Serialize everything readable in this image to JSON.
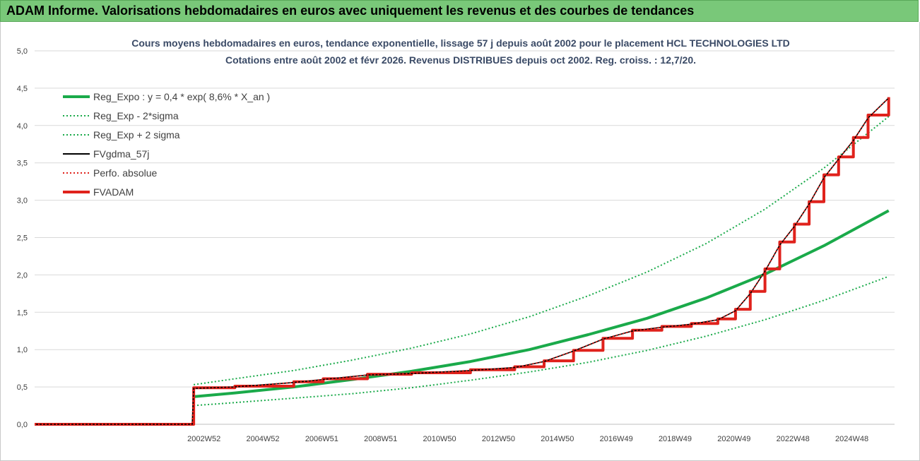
{
  "header": {
    "title": "ADAM Informe. Valorisations hebdomadaires en euros avec uniquement les revenus et des courbes de tendances"
  },
  "chart_data": {
    "type": "line",
    "title_line1": "Cours moyens hebdomadaires en euros, tendance exponentielle, lissage 57 j depuis août 2002 pour le placement HCL TECHNOLOGIES LTD",
    "title_line2": "Cotations entre août 2002 et févr 2026. Revenus DISTRIBUES depuis oct 2002. Reg. croiss. : 12,7/20.",
    "ylim": [
      0,
      5
    ],
    "yticks": [
      "0,0",
      "0,5",
      "1,0",
      "1,5",
      "2,0",
      "2,5",
      "3,0",
      "3,5",
      "4,0",
      "4,5",
      "5,0"
    ],
    "xlim": [
      1997.2,
      2026.4
    ],
    "xticks": [
      {
        "label": "2002W52",
        "x": 2002.95
      },
      {
        "label": "2004W52",
        "x": 2004.95
      },
      {
        "label": "2006W51",
        "x": 2006.95
      },
      {
        "label": "2008W51",
        "x": 2008.95
      },
      {
        "label": "2010W50",
        "x": 2010.95
      },
      {
        "label": "2012W50",
        "x": 2012.95
      },
      {
        "label": "2014W50",
        "x": 2014.95
      },
      {
        "label": "2016W49",
        "x": 2016.95
      },
      {
        "label": "2018W49",
        "x": 2018.95
      },
      {
        "label": "2020W49",
        "x": 2020.95
      },
      {
        "label": "2022W48",
        "x": 2022.95
      },
      {
        "label": "2024W48",
        "x": 2024.95
      }
    ],
    "grid": "horizontal",
    "legend_position": "top-left",
    "series": [
      {
        "name": "Reg_Expo : y = 0,4 * exp( 8,6% *  X_an )",
        "color": "#1aaa4a",
        "style": "solid-thick",
        "x": [
          2002.6,
          2004,
          2006,
          2008,
          2010,
          2012,
          2014,
          2016,
          2018,
          2020,
          2022,
          2024,
          2026.2
        ],
        "y": [
          0.37,
          0.42,
          0.5,
          0.6,
          0.71,
          0.84,
          1.0,
          1.2,
          1.42,
          1.69,
          2.01,
          2.39,
          2.86
        ]
      },
      {
        "name": "Reg_Exp - 2*sigma",
        "color": "#1aaa4a",
        "style": "dotted",
        "x": [
          2002.6,
          2004,
          2006,
          2008,
          2010,
          2012,
          2014,
          2016,
          2018,
          2020,
          2022,
          2024,
          2026.2
        ],
        "y": [
          0.25,
          0.29,
          0.35,
          0.41,
          0.49,
          0.59,
          0.7,
          0.83,
          0.99,
          1.18,
          1.4,
          1.66,
          1.98
        ]
      },
      {
        "name": "Reg_Exp + 2 sigma",
        "color": "#1aaa4a",
        "style": "dotted",
        "x": [
          2002.6,
          2004,
          2006,
          2008,
          2010,
          2012,
          2014,
          2016,
          2018,
          2020,
          2022,
          2024,
          2026.2
        ],
        "y": [
          0.53,
          0.61,
          0.72,
          0.86,
          1.02,
          1.21,
          1.44,
          1.72,
          2.04,
          2.42,
          2.88,
          3.43,
          4.12
        ]
      },
      {
        "name": "FVgdma_57j",
        "color": "#000000",
        "style": "solid",
        "x": [
          1997.2,
          2002.55,
          2002.6,
          2004,
          2006,
          2007,
          2008.5,
          2010,
          2012,
          2013.5,
          2014.5,
          2015.5,
          2016.5,
          2017.5,
          2018.5,
          2019.5,
          2020.4,
          2021,
          2021.5,
          2022,
          2022.5,
          2023,
          2023.5,
          2024,
          2024.5,
          2025,
          2025.5,
          2026.2
        ],
        "y": [
          0.0,
          0.0,
          0.48,
          0.5,
          0.56,
          0.6,
          0.66,
          0.68,
          0.72,
          0.76,
          0.84,
          0.98,
          1.14,
          1.25,
          1.3,
          1.34,
          1.4,
          1.52,
          1.75,
          2.05,
          2.4,
          2.65,
          2.95,
          3.3,
          3.55,
          3.8,
          4.1,
          4.37
        ]
      },
      {
        "name": "Perfo. absolue",
        "color": "#e0221c",
        "style": "dotted",
        "x": [
          1997.2,
          2002.55,
          2002.6,
          2004,
          2006,
          2007,
          2008.5,
          2010,
          2012,
          2013.5,
          2014.5,
          2015.5,
          2016.5,
          2017.5,
          2018.5,
          2019.5,
          2020.4,
          2021,
          2021.5,
          2022,
          2022.5,
          2023,
          2023.5,
          2024,
          2024.5,
          2025,
          2025.5,
          2026.2
        ],
        "y": [
          0.0,
          0.0,
          0.48,
          0.5,
          0.56,
          0.6,
          0.66,
          0.68,
          0.72,
          0.76,
          0.84,
          0.98,
          1.14,
          1.25,
          1.3,
          1.34,
          1.4,
          1.52,
          1.75,
          2.05,
          2.4,
          2.65,
          2.95,
          3.3,
          3.55,
          3.8,
          4.1,
          4.37
        ]
      },
      {
        "name": "FVADAM",
        "color": "#e0221c",
        "style": "solid-thick",
        "x": [
          1997.2,
          2002.55,
          2002.6,
          2004,
          2006,
          2007,
          2008.5,
          2010,
          2012,
          2013.5,
          2014.5,
          2015.5,
          2016.5,
          2017.5,
          2018.5,
          2019.5,
          2020.4,
          2021,
          2021.5,
          2022,
          2022.5,
          2023,
          2023.5,
          2024,
          2024.5,
          2025,
          2025.5,
          2026.2
        ],
        "y": [
          0.0,
          0.0,
          0.49,
          0.51,
          0.57,
          0.61,
          0.67,
          0.69,
          0.73,
          0.77,
          0.85,
          0.99,
          1.15,
          1.26,
          1.31,
          1.35,
          1.41,
          1.54,
          1.78,
          2.08,
          2.44,
          2.68,
          2.98,
          3.34,
          3.58,
          3.84,
          4.14,
          4.38
        ]
      }
    ]
  }
}
